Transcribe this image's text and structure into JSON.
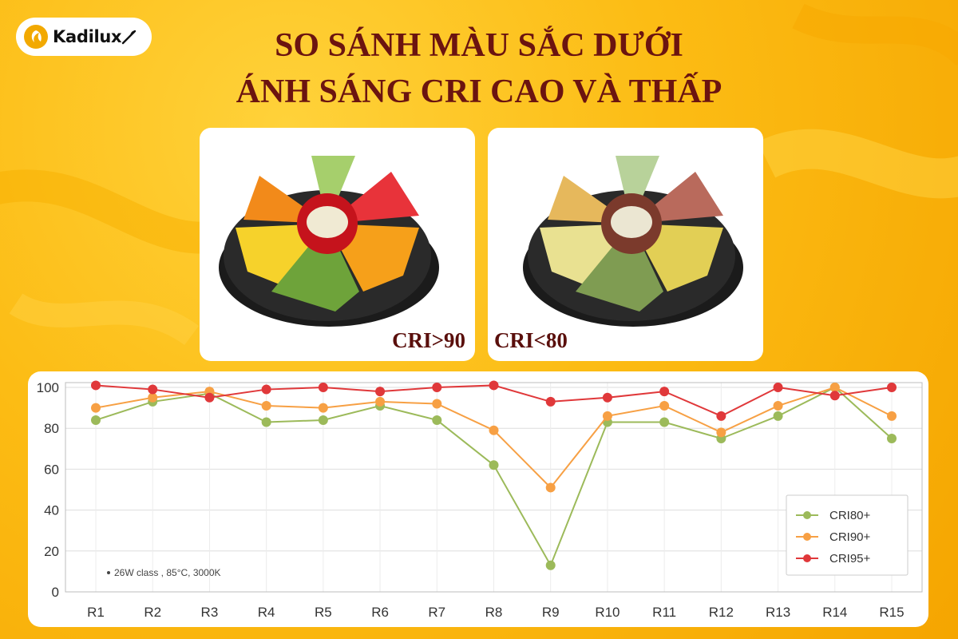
{
  "brand": {
    "logo_text": "Kadilux"
  },
  "header": {
    "title_line1": "SO SÁNH MÀU SẮC DƯỚI",
    "title_line2": "ÁNH SÁNG CRI CAO VÀ THẤP"
  },
  "photos": [
    {
      "label": "CRI>90"
    },
    {
      "label": "CRI<80"
    }
  ],
  "chart_data": {
    "type": "line",
    "categories": [
      "R1",
      "R2",
      "R3",
      "R4",
      "R5",
      "R6",
      "R7",
      "R8",
      "R9",
      "R10",
      "R11",
      "R12",
      "R13",
      "R14",
      "R15"
    ],
    "series": [
      {
        "name": "CRI80+",
        "color": "#9cba5a",
        "values": [
          84,
          93,
          97,
          83,
          84,
          91,
          84,
          62,
          13,
          83,
          83,
          75,
          86,
          100,
          75
        ]
      },
      {
        "name": "CRI90+",
        "color": "#f7a044",
        "values": [
          90,
          95,
          98,
          91,
          90,
          93,
          92,
          79,
          51,
          86,
          91,
          78,
          91,
          100,
          86
        ]
      },
      {
        "name": "CRI95+",
        "color": "#e0383a",
        "values": [
          101,
          99,
          95,
          99,
          100,
          98,
          100,
          101,
          93,
          95,
          98,
          86,
          100,
          96,
          100
        ]
      }
    ],
    "ylim": [
      0,
      100
    ],
    "yticks": [
      0,
      20,
      40,
      60,
      80,
      100
    ],
    "grid": true,
    "legend_position": "bottom-right",
    "annotation": "26W class , 85°C, 3000K"
  }
}
